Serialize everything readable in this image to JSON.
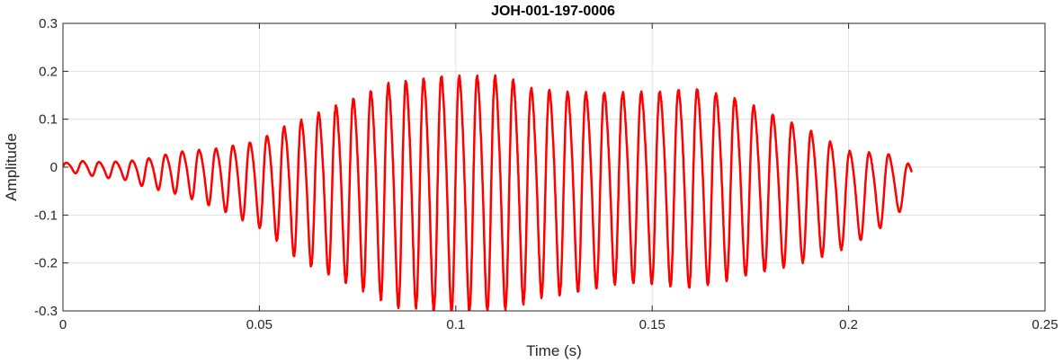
{
  "chart_data": {
    "type": "line",
    "title": "JOH-001-197-0006",
    "xlabel": "Time (s)",
    "ylabel": "Amplitude",
    "xlim": [
      0,
      0.25
    ],
    "ylim": [
      -0.3,
      0.3
    ],
    "xticks": [
      0,
      0.05,
      0.1,
      0.15,
      0.2,
      0.25
    ],
    "xtick_labels": [
      "0",
      "0.05",
      "0.1",
      "0.15",
      "0.2",
      "0.25"
    ],
    "yticks": [
      -0.3,
      -0.2,
      -0.1,
      0,
      0.1,
      0.2,
      0.3
    ],
    "ytick_labels": [
      "-0.3",
      "-0.2",
      "-0.1",
      "0",
      "0.1",
      "0.2",
      "0.3"
    ],
    "grid": true,
    "colors": {
      "line": "#ff0000",
      "grid": "#e0e0e0",
      "axis": "#262626"
    },
    "series": [
      {
        "line_width": 2.5,
        "sampling": "envelope-modulated oscillation, start 0 s, end 0.216 s",
        "envelope": {
          "t": [
            0,
            0.005,
            0.01,
            0.015,
            0.02,
            0.03,
            0.04,
            0.05,
            0.055,
            0.06,
            0.065,
            0.07,
            0.075,
            0.08,
            0.085,
            0.09,
            0.095,
            0.1,
            0.105,
            0.11,
            0.115,
            0.12,
            0.13,
            0.14,
            0.15,
            0.155,
            0.16,
            0.17,
            0.18,
            0.19,
            0.2,
            0.21,
            0.216
          ],
          "amp": [
            0.01,
            0.015,
            0.018,
            0.02,
            0.03,
            0.05,
            0.07,
            0.1,
            0.13,
            0.16,
            0.18,
            0.2,
            0.22,
            0.24,
            0.26,
            0.26,
            0.27,
            0.27,
            0.27,
            0.27,
            0.26,
            0.24,
            0.23,
            0.22,
            0.22,
            0.225,
            0.23,
            0.21,
            0.18,
            0.15,
            0.11,
            0.08,
            0.04
          ],
          "offset": [
            0,
            0,
            -0.005,
            -0.005,
            -0.01,
            -0.01,
            -0.02,
            -0.03,
            -0.03,
            -0.04,
            -0.04,
            -0.04,
            -0.04,
            -0.04,
            -0.04,
            -0.04,
            -0.04,
            -0.04,
            -0.04,
            -0.04,
            -0.04,
            -0.04,
            -0.04,
            -0.03,
            -0.03,
            -0.03,
            -0.03,
            -0.03,
            -0.04,
            -0.05,
            -0.06,
            -0.04,
            -0.03
          ]
        },
        "frequency": {
          "t": [
            0,
            0.1,
            0.216
          ],
          "hz": [
            240,
            220,
            200
          ]
        }
      }
    ]
  }
}
